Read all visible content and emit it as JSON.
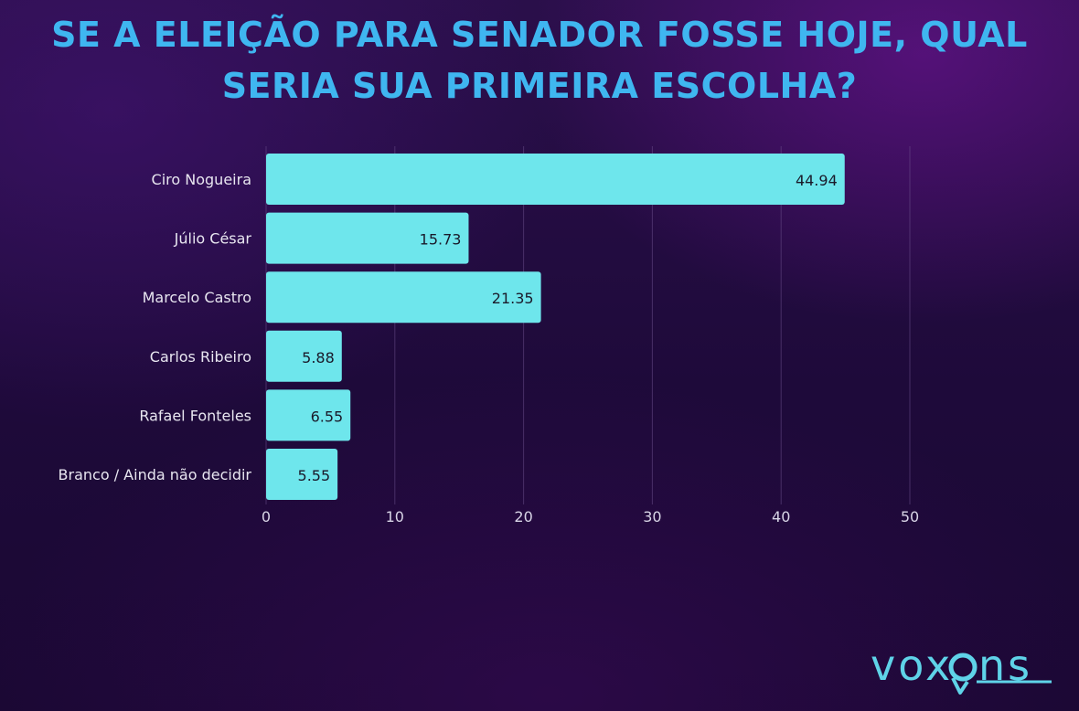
{
  "chart_data": {
    "type": "bar",
    "orientation": "horizontal",
    "title": "SE A ELEIÇÃO PARA SENADOR FOSSE HOJE, QUAL SERIA SUA PRIMEIRA ESCOLHA?",
    "title_lines": [
      "SE A ELEIÇÃO PARA SENADOR FOSSE HOJE, QUAL",
      "SERIA SUA PRIMEIRA ESCOLHA?"
    ],
    "categories": [
      "Ciro Nogueira",
      "Júlio César",
      "Marcelo Castro",
      "Carlos Ribeiro",
      "Rafael Fonteles",
      "Branco / Ainda não decidir"
    ],
    "values": [
      44.94,
      15.73,
      21.35,
      5.88,
      6.55,
      5.55
    ],
    "value_labels": [
      "44.94",
      "15.73",
      "21.35",
      "5.88",
      "6.55",
      "5.55"
    ],
    "xticks": [
      0,
      10,
      20,
      30,
      40,
      50
    ],
    "xlim": [
      0,
      50
    ],
    "grid": true,
    "legend": "none",
    "colors": {
      "bar": "#6ee6ec",
      "title": "#3fb6f0",
      "grid": "#6a4f8a"
    }
  },
  "brand": {
    "name": "voxons"
  }
}
